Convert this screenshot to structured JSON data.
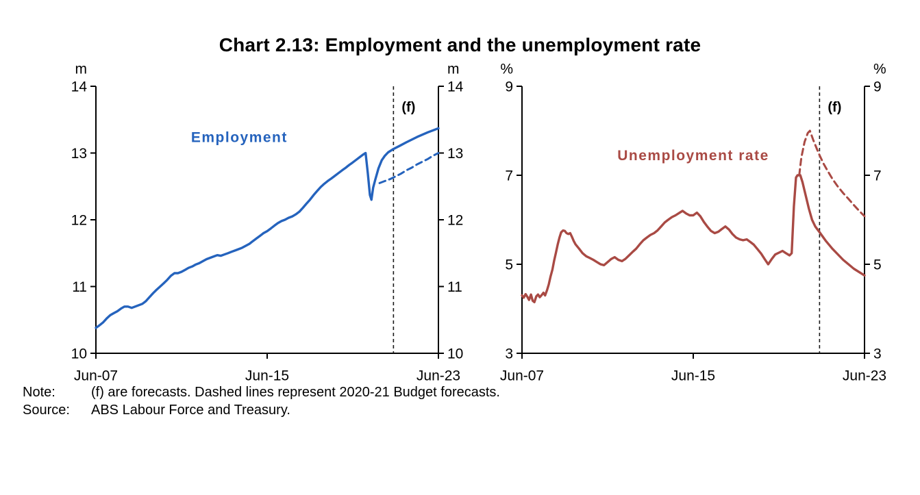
{
  "title": "Chart 2.13: Employment and the unemployment rate",
  "note": {
    "label": "Note:",
    "text": "(f) are forecasts. Dashed lines represent 2020-21 Budget forecasts."
  },
  "source": {
    "label": "Source:",
    "text": "ABS Labour Force and Treasury."
  },
  "colors": {
    "employment": "#2563bd",
    "unemployment": "#a94a44",
    "axis": "#000000",
    "forecast_marker": "#1a1a1a"
  },
  "chart_data": [
    {
      "id": "employment",
      "type": "line",
      "unit": "m",
      "ylim": [
        10,
        14
      ],
      "yticks": [
        14,
        13,
        12,
        11,
        10
      ],
      "xlim": [
        2007.5,
        2023.5
      ],
      "xticks": [
        {
          "x": 2007.5,
          "label": "Jun-07"
        },
        {
          "x": 2015.5,
          "label": "Jun-15"
        },
        {
          "x": 2023.5,
          "label": "Jun-23"
        }
      ],
      "forecast": {
        "x": 2021.4,
        "label": "(f)"
      },
      "series_label": {
        "text": "Employment",
        "x": 2014.2,
        "y": 13.24,
        "color_key": "employment"
      },
      "series": [
        {
          "name": "Employment (actual and forecast)",
          "style": "solid",
          "color_key": "employment",
          "points": [
            [
              2007.5,
              10.38
            ],
            [
              2007.67,
              10.42
            ],
            [
              2007.83,
              10.46
            ],
            [
              2008.0,
              10.52
            ],
            [
              2008.17,
              10.57
            ],
            [
              2008.33,
              10.6
            ],
            [
              2008.5,
              10.63
            ],
            [
              2008.67,
              10.67
            ],
            [
              2008.83,
              10.7
            ],
            [
              2009.0,
              10.7
            ],
            [
              2009.17,
              10.68
            ],
            [
              2009.33,
              10.7
            ],
            [
              2009.5,
              10.72
            ],
            [
              2009.67,
              10.74
            ],
            [
              2009.83,
              10.78
            ],
            [
              2010.0,
              10.84
            ],
            [
              2010.17,
              10.9
            ],
            [
              2010.33,
              10.95
            ],
            [
              2010.5,
              11.0
            ],
            [
              2010.67,
              11.05
            ],
            [
              2010.83,
              11.1
            ],
            [
              2011.0,
              11.16
            ],
            [
              2011.17,
              11.2
            ],
            [
              2011.33,
              11.2
            ],
            [
              2011.5,
              11.22
            ],
            [
              2011.67,
              11.25
            ],
            [
              2011.83,
              11.28
            ],
            [
              2012.0,
              11.3
            ],
            [
              2012.17,
              11.33
            ],
            [
              2012.33,
              11.35
            ],
            [
              2012.5,
              11.38
            ],
            [
              2012.67,
              11.41
            ],
            [
              2012.83,
              11.43
            ],
            [
              2013.0,
              11.45
            ],
            [
              2013.17,
              11.47
            ],
            [
              2013.33,
              11.46
            ],
            [
              2013.5,
              11.48
            ],
            [
              2013.67,
              11.5
            ],
            [
              2013.83,
              11.52
            ],
            [
              2014.0,
              11.54
            ],
            [
              2014.17,
              11.56
            ],
            [
              2014.33,
              11.58
            ],
            [
              2014.5,
              11.61
            ],
            [
              2014.67,
              11.64
            ],
            [
              2014.83,
              11.68
            ],
            [
              2015.0,
              11.72
            ],
            [
              2015.17,
              11.76
            ],
            [
              2015.33,
              11.8
            ],
            [
              2015.5,
              11.83
            ],
            [
              2015.67,
              11.87
            ],
            [
              2015.83,
              11.91
            ],
            [
              2016.0,
              11.95
            ],
            [
              2016.17,
              11.98
            ],
            [
              2016.33,
              12.0
            ],
            [
              2016.5,
              12.03
            ],
            [
              2016.67,
              12.05
            ],
            [
              2016.83,
              12.08
            ],
            [
              2017.0,
              12.12
            ],
            [
              2017.17,
              12.18
            ],
            [
              2017.33,
              12.24
            ],
            [
              2017.5,
              12.3
            ],
            [
              2017.67,
              12.37
            ],
            [
              2017.83,
              12.43
            ],
            [
              2018.0,
              12.49
            ],
            [
              2018.17,
              12.54
            ],
            [
              2018.33,
              12.58
            ],
            [
              2018.5,
              12.62
            ],
            [
              2018.67,
              12.66
            ],
            [
              2018.83,
              12.7
            ],
            [
              2019.0,
              12.74
            ],
            [
              2019.17,
              12.78
            ],
            [
              2019.33,
              12.82
            ],
            [
              2019.5,
              12.86
            ],
            [
              2019.67,
              12.9
            ],
            [
              2019.83,
              12.94
            ],
            [
              2020.0,
              12.98
            ],
            [
              2020.1,
              13.0
            ],
            [
              2020.2,
              12.7
            ],
            [
              2020.3,
              12.37
            ],
            [
              2020.37,
              12.3
            ],
            [
              2020.45,
              12.48
            ],
            [
              2020.55,
              12.6
            ],
            [
              2020.7,
              12.77
            ],
            [
              2020.85,
              12.89
            ],
            [
              2021.0,
              12.96
            ],
            [
              2021.15,
              13.01
            ],
            [
              2021.4,
              13.06
            ],
            [
              2021.7,
              13.11
            ],
            [
              2022.0,
              13.16
            ],
            [
              2022.5,
              13.24
            ],
            [
              2023.0,
              13.31
            ],
            [
              2023.5,
              13.37
            ]
          ]
        },
        {
          "name": "2020-21 Budget forecast",
          "style": "dashed",
          "color_key": "employment",
          "points": [
            [
              2020.75,
              12.55
            ],
            [
              2021.0,
              12.58
            ],
            [
              2021.25,
              12.61
            ],
            [
              2021.5,
              12.65
            ],
            [
              2021.75,
              12.69
            ],
            [
              2022.0,
              12.74
            ],
            [
              2022.25,
              12.78
            ],
            [
              2022.5,
              12.83
            ],
            [
              2022.75,
              12.87
            ],
            [
              2023.0,
              12.91
            ],
            [
              2023.25,
              12.96
            ],
            [
              2023.5,
              13.0
            ]
          ]
        }
      ]
    },
    {
      "id": "unemployment-rate",
      "type": "line",
      "unit": "%",
      "ylim": [
        3,
        9
      ],
      "yticks": [
        9,
        7,
        5,
        3
      ],
      "xlim": [
        2007.5,
        2023.5
      ],
      "xticks": [
        {
          "x": 2007.5,
          "label": "Jun-07"
        },
        {
          "x": 2015.5,
          "label": "Jun-15"
        },
        {
          "x": 2023.5,
          "label": "Jun-23"
        }
      ],
      "forecast": {
        "x": 2021.4,
        "label": "(f)"
      },
      "series_label": {
        "text": "Unemployment rate",
        "x": 2015.5,
        "y": 7.45,
        "color_key": "unemployment"
      },
      "series": [
        {
          "name": "Unemployment rate (actual and forecast)",
          "style": "solid",
          "color_key": "unemployment",
          "points": [
            [
              2007.5,
              4.3
            ],
            [
              2007.58,
              4.25
            ],
            [
              2007.67,
              4.33
            ],
            [
              2007.75,
              4.27
            ],
            [
              2007.83,
              4.2
            ],
            [
              2007.92,
              4.32
            ],
            [
              2008.0,
              4.18
            ],
            [
              2008.08,
              4.15
            ],
            [
              2008.17,
              4.28
            ],
            [
              2008.25,
              4.32
            ],
            [
              2008.33,
              4.26
            ],
            [
              2008.42,
              4.31
            ],
            [
              2008.5,
              4.36
            ],
            [
              2008.58,
              4.3
            ],
            [
              2008.67,
              4.42
            ],
            [
              2008.75,
              4.55
            ],
            [
              2008.83,
              4.72
            ],
            [
              2008.92,
              4.88
            ],
            [
              2009.0,
              5.08
            ],
            [
              2009.08,
              5.25
            ],
            [
              2009.17,
              5.45
            ],
            [
              2009.25,
              5.6
            ],
            [
              2009.33,
              5.72
            ],
            [
              2009.42,
              5.76
            ],
            [
              2009.5,
              5.75
            ],
            [
              2009.58,
              5.7
            ],
            [
              2009.67,
              5.68
            ],
            [
              2009.75,
              5.7
            ],
            [
              2009.83,
              5.62
            ],
            [
              2009.92,
              5.52
            ],
            [
              2010.0,
              5.45
            ],
            [
              2010.17,
              5.35
            ],
            [
              2010.33,
              5.25
            ],
            [
              2010.5,
              5.18
            ],
            [
              2010.67,
              5.14
            ],
            [
              2010.83,
              5.1
            ],
            [
              2011.0,
              5.05
            ],
            [
              2011.17,
              5.0
            ],
            [
              2011.33,
              4.98
            ],
            [
              2011.5,
              5.05
            ],
            [
              2011.67,
              5.12
            ],
            [
              2011.83,
              5.16
            ],
            [
              2012.0,
              5.1
            ],
            [
              2012.17,
              5.07
            ],
            [
              2012.33,
              5.12
            ],
            [
              2012.5,
              5.2
            ],
            [
              2012.67,
              5.28
            ],
            [
              2012.83,
              5.35
            ],
            [
              2013.0,
              5.45
            ],
            [
              2013.17,
              5.54
            ],
            [
              2013.33,
              5.6
            ],
            [
              2013.5,
              5.66
            ],
            [
              2013.67,
              5.7
            ],
            [
              2013.83,
              5.76
            ],
            [
              2014.0,
              5.85
            ],
            [
              2014.17,
              5.94
            ],
            [
              2014.33,
              6.0
            ],
            [
              2014.5,
              6.06
            ],
            [
              2014.67,
              6.1
            ],
            [
              2014.83,
              6.15
            ],
            [
              2015.0,
              6.2
            ],
            [
              2015.17,
              6.14
            ],
            [
              2015.33,
              6.1
            ],
            [
              2015.5,
              6.1
            ],
            [
              2015.67,
              6.16
            ],
            [
              2015.83,
              6.08
            ],
            [
              2016.0,
              5.95
            ],
            [
              2016.17,
              5.84
            ],
            [
              2016.33,
              5.75
            ],
            [
              2016.5,
              5.7
            ],
            [
              2016.67,
              5.73
            ],
            [
              2016.83,
              5.79
            ],
            [
              2017.0,
              5.85
            ],
            [
              2017.17,
              5.78
            ],
            [
              2017.33,
              5.68
            ],
            [
              2017.5,
              5.6
            ],
            [
              2017.67,
              5.56
            ],
            [
              2017.83,
              5.54
            ],
            [
              2018.0,
              5.56
            ],
            [
              2018.17,
              5.5
            ],
            [
              2018.33,
              5.44
            ],
            [
              2018.5,
              5.34
            ],
            [
              2018.67,
              5.24
            ],
            [
              2018.83,
              5.12
            ],
            [
              2019.0,
              5.0
            ],
            [
              2019.17,
              5.12
            ],
            [
              2019.33,
              5.22
            ],
            [
              2019.5,
              5.26
            ],
            [
              2019.67,
              5.3
            ],
            [
              2019.83,
              5.25
            ],
            [
              2020.0,
              5.2
            ],
            [
              2020.1,
              5.25
            ],
            [
              2020.2,
              6.3
            ],
            [
              2020.3,
              6.95
            ],
            [
              2020.37,
              7.0
            ],
            [
              2020.5,
              7.0
            ],
            [
              2020.6,
              6.85
            ],
            [
              2020.75,
              6.55
            ],
            [
              2020.9,
              6.25
            ],
            [
              2021.05,
              6.0
            ],
            [
              2021.2,
              5.85
            ],
            [
              2021.4,
              5.72
            ],
            [
              2021.7,
              5.52
            ],
            [
              2022.0,
              5.35
            ],
            [
              2022.5,
              5.1
            ],
            [
              2023.0,
              4.9
            ],
            [
              2023.5,
              4.75
            ]
          ]
        },
        {
          "name": "2020-21 Budget forecast",
          "style": "dashed",
          "color_key": "unemployment",
          "points": [
            [
              2020.45,
              7.0
            ],
            [
              2020.55,
              7.4
            ],
            [
              2020.7,
              7.75
            ],
            [
              2020.85,
              7.95
            ],
            [
              2020.95,
              8.0
            ],
            [
              2021.1,
              7.8
            ],
            [
              2021.25,
              7.62
            ],
            [
              2021.4,
              7.45
            ],
            [
              2021.6,
              7.25
            ],
            [
              2021.8,
              7.08
            ],
            [
              2022.0,
              6.92
            ],
            [
              2022.25,
              6.75
            ],
            [
              2022.5,
              6.6
            ],
            [
              2022.75,
              6.47
            ],
            [
              2023.0,
              6.33
            ],
            [
              2023.25,
              6.2
            ],
            [
              2023.5,
              6.08
            ]
          ]
        }
      ]
    }
  ]
}
